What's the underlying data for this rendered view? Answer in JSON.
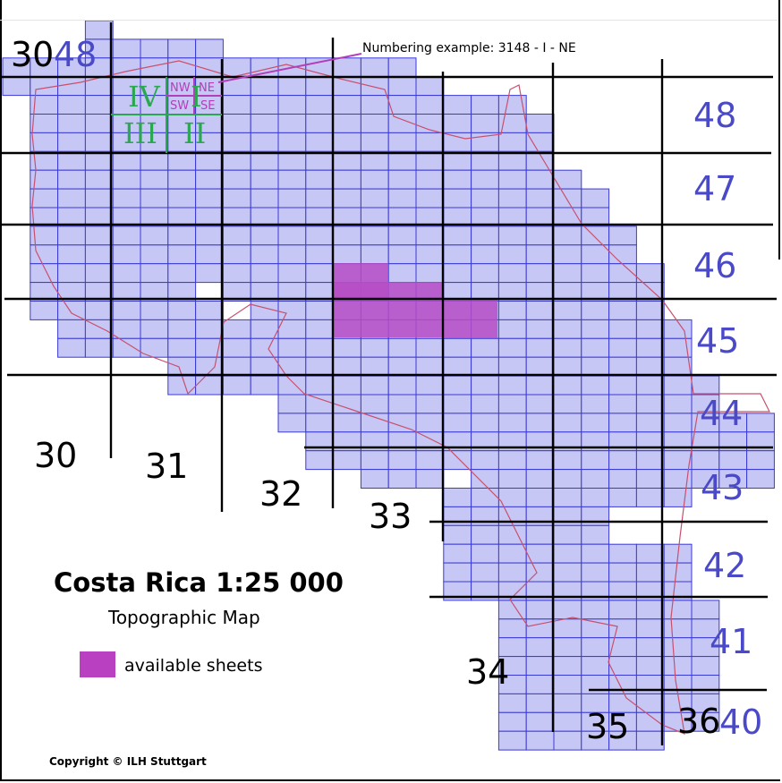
{
  "map": {
    "title": "Costa Rica 1:25 000",
    "subtitle": "Topographic Map",
    "legend": {
      "available_label": "available sheets",
      "available_color": "#b940c0"
    },
    "numbering_example": "Numbering example: 3148 - I - NE",
    "corner_label_col": "30",
    "corner_label_row": "48",
    "quadrants": {
      "nw_roman": "IV",
      "ne_roman": "I",
      "sw_roman": "III",
      "se_roman": "II"
    },
    "sub_quadrants": {
      "nw": "NW",
      "ne": "NE",
      "sw": "SW",
      "se": "SE"
    },
    "column_labels": [
      "30",
      "31",
      "32",
      "33",
      "34",
      "35",
      "36"
    ],
    "row_labels": [
      "48",
      "47",
      "46",
      "45",
      "44",
      "43",
      "42",
      "41",
      "40"
    ],
    "copyright": "Copyright © ILH Stuttgart",
    "colors": {
      "sheet_fill": "#c7c7f5",
      "sheet_border": "#3a3ad6",
      "available_fill": "#b64cc6",
      "grid_line": "#000000",
      "coast_line": "#c8506e",
      "row_label": "#4a4ac8",
      "quadrant_roman": "#2aa84f",
      "quadrant_dir": "#b23fb8"
    }
  }
}
